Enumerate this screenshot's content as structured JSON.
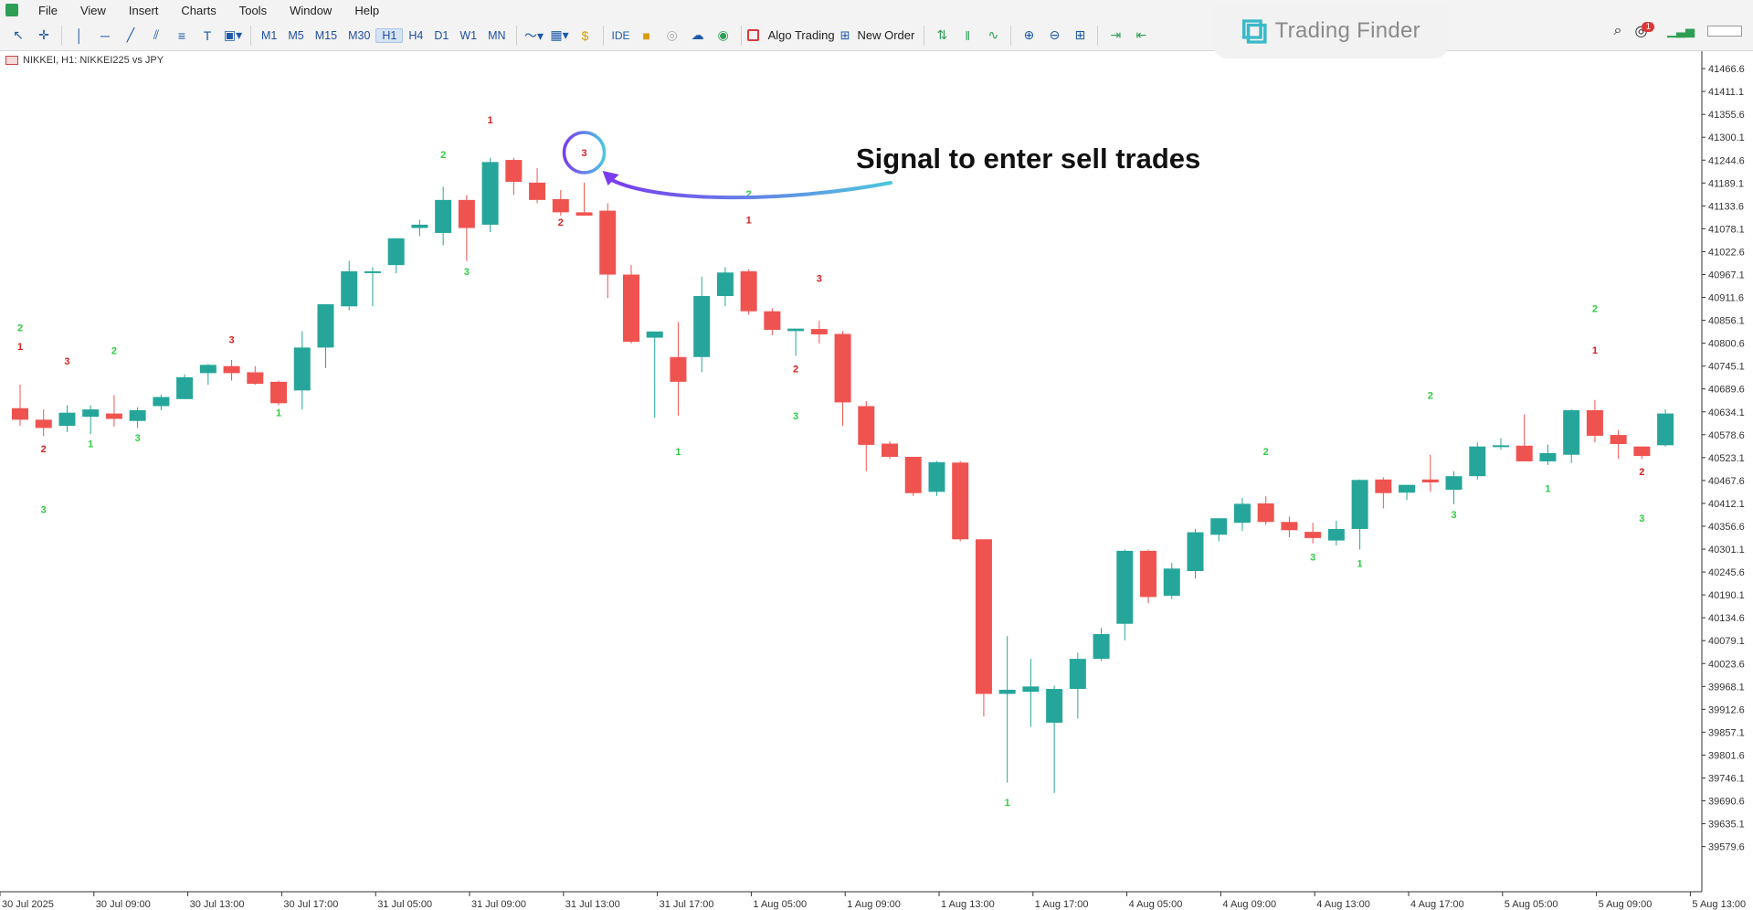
{
  "menu": [
    "File",
    "View",
    "Insert",
    "Charts",
    "Tools",
    "Window",
    "Help"
  ],
  "toolbar": {
    "timeframes": [
      "M1",
      "M5",
      "M15",
      "M30",
      "H1",
      "H4",
      "D1",
      "W1",
      "MN"
    ],
    "active_timeframe": "H1",
    "ide_label": "IDE",
    "algo_label": "Algo Trading",
    "new_order_label": "New Order",
    "notification_count": "1"
  },
  "logo": {
    "name": "Trading Finder"
  },
  "chart": {
    "symbol_label": "NIKKEI, H1:  NIKKEI225 vs JPY",
    "annotation": "Signal to enter sell trades",
    "colors": {
      "bull": "#26a69a",
      "bear": "#ef5350",
      "signal_bull": "#2ecc40",
      "signal_bear": "#d71f1f",
      "arrow_start": "#7a3cf0",
      "arrow_end": "#4dc7de"
    }
  },
  "chart_data": {
    "type": "candlestick",
    "title": "NIKKEI, H1:  NIKKEI225 vs JPY",
    "ylim": [
      39530,
      41500
    ],
    "yticks": [
      "41466.6",
      "41411.1",
      "41355.6",
      "41300.1",
      "41244.6",
      "41189.1",
      "41133.6",
      "41078.1",
      "41022.6",
      "40967.1",
      "40911.6",
      "40856.1",
      "40800.6",
      "40745.1",
      "40689.6",
      "40634.1",
      "40578.6",
      "40523.1",
      "40467.6",
      "40412.1",
      "40356.6",
      "40301.1",
      "40245.6",
      "40190.1",
      "40134.6",
      "40079.1",
      "40023.6",
      "39968.1",
      "39912.6",
      "39857.1",
      "39801.6",
      "39746.1",
      "39690.6",
      "39635.1",
      "39579.6"
    ],
    "xticks": [
      "30 Jul 2025",
      "30 Jul 09:00",
      "30 Jul 13:00",
      "30 Jul 17:00",
      "31 Jul 05:00",
      "31 Jul 09:00",
      "31 Jul 13:00",
      "31 Jul 17:00",
      "1 Aug 05:00",
      "1 Aug 09:00",
      "1 Aug 13:00",
      "1 Aug 17:00",
      "4 Aug 05:00",
      "4 Aug 09:00",
      "4 Aug 13:00",
      "4 Aug 17:00",
      "5 Aug 05:00",
      "5 Aug 09:00",
      "5 Aug 13:00"
    ],
    "candles": [
      {
        "o": 40643,
        "h": 40700,
        "l": 40600,
        "c": 40615
      },
      {
        "o": 40615,
        "h": 40640,
        "l": 40575,
        "c": 40595
      },
      {
        "o": 40600,
        "h": 40650,
        "l": 40585,
        "c": 40632
      },
      {
        "o": 40622,
        "h": 40650,
        "l": 40580,
        "c": 40640
      },
      {
        "o": 40630,
        "h": 40675,
        "l": 40598,
        "c": 40617
      },
      {
        "o": 40612,
        "h": 40645,
        "l": 40595,
        "c": 40638
      },
      {
        "o": 40648,
        "h": 40676,
        "l": 40638,
        "c": 40670
      },
      {
        "o": 40665,
        "h": 40725,
        "l": 40665,
        "c": 40718
      },
      {
        "o": 40728,
        "h": 40750,
        "l": 40700,
        "c": 40748
      },
      {
        "o": 40745,
        "h": 40760,
        "l": 40710,
        "c": 40728
      },
      {
        "o": 40730,
        "h": 40745,
        "l": 40700,
        "c": 40702
      },
      {
        "o": 40707,
        "h": 40710,
        "l": 40650,
        "c": 40655
      },
      {
        "o": 40686,
        "h": 40830,
        "l": 40640,
        "c": 40790
      },
      {
        "o": 40790,
        "h": 40880,
        "l": 40740,
        "c": 40895
      },
      {
        "o": 40890,
        "h": 41000,
        "l": 40880,
        "c": 40975
      },
      {
        "o": 40975,
        "h": 40985,
        "l": 40890,
        "c": 40975
      },
      {
        "o": 40990,
        "h": 41040,
        "l": 40970,
        "c": 41055
      },
      {
        "o": 41080,
        "h": 41100,
        "l": 41060,
        "c": 41088
      },
      {
        "o": 41068,
        "h": 41180,
        "l": 41038,
        "c": 41148
      },
      {
        "o": 41148,
        "h": 41160,
        "l": 41000,
        "c": 41080
      },
      {
        "o": 41088,
        "h": 41250,
        "l": 41070,
        "c": 41240
      },
      {
        "o": 41245,
        "h": 41250,
        "l": 41160,
        "c": 41192
      },
      {
        "o": 41190,
        "h": 41225,
        "l": 41140,
        "c": 41148
      },
      {
        "o": 41150,
        "h": 41172,
        "l": 41110,
        "c": 41118
      },
      {
        "o": 41118,
        "h": 41190,
        "l": 41110,
        "c": 41110
      },
      {
        "o": 41122,
        "h": 41140,
        "l": 40910,
        "c": 40967
      },
      {
        "o": 40967,
        "h": 40990,
        "l": 40800,
        "c": 40804
      },
      {
        "o": 40814,
        "h": 40815,
        "l": 40620,
        "c": 40829
      },
      {
        "o": 40767,
        "h": 40852,
        "l": 40625,
        "c": 40707
      },
      {
        "o": 40767,
        "h": 40962,
        "l": 40730,
        "c": 40915
      },
      {
        "o": 40915,
        "h": 40985,
        "l": 40890,
        "c": 40972
      },
      {
        "o": 40975,
        "h": 40980,
        "l": 40870,
        "c": 40878
      },
      {
        "o": 40878,
        "h": 40885,
        "l": 40820,
        "c": 40833
      },
      {
        "o": 40830,
        "h": 40835,
        "l": 40770,
        "c": 40836
      },
      {
        "o": 40835,
        "h": 40855,
        "l": 40800,
        "c": 40822
      },
      {
        "o": 40823,
        "h": 40830,
        "l": 40600,
        "c": 40657
      },
      {
        "o": 40648,
        "h": 40660,
        "l": 40490,
        "c": 40554
      },
      {
        "o": 40557,
        "h": 40563,
        "l": 40520,
        "c": 40525
      },
      {
        "o": 40525,
        "h": 40525,
        "l": 40430,
        "c": 40437
      },
      {
        "o": 40440,
        "h": 40515,
        "l": 40430,
        "c": 40512
      },
      {
        "o": 40511,
        "h": 40515,
        "l": 40320,
        "c": 40325
      },
      {
        "o": 40325,
        "h": 40325,
        "l": 39895,
        "c": 39950
      },
      {
        "o": 39950,
        "h": 40090,
        "l": 39735,
        "c": 39960
      },
      {
        "o": 39955,
        "h": 40035,
        "l": 39870,
        "c": 39968
      },
      {
        "o": 39880,
        "h": 39970,
        "l": 39710,
        "c": 39962
      },
      {
        "o": 39962,
        "h": 40050,
        "l": 39890,
        "c": 40035
      },
      {
        "o": 40035,
        "h": 40110,
        "l": 40030,
        "c": 40095
      },
      {
        "o": 40120,
        "h": 40300,
        "l": 40080,
        "c": 40297
      },
      {
        "o": 40297,
        "h": 40300,
        "l": 40170,
        "c": 40185
      },
      {
        "o": 40188,
        "h": 40268,
        "l": 40180,
        "c": 40254
      },
      {
        "o": 40248,
        "h": 40350,
        "l": 40230,
        "c": 40342
      },
      {
        "o": 40336,
        "h": 40370,
        "l": 40320,
        "c": 40376
      },
      {
        "o": 40365,
        "h": 40425,
        "l": 40345,
        "c": 40411
      },
      {
        "o": 40412,
        "h": 40430,
        "l": 40360,
        "c": 40367
      },
      {
        "o": 40367,
        "h": 40380,
        "l": 40330,
        "c": 40347
      },
      {
        "o": 40343,
        "h": 40365,
        "l": 40315,
        "c": 40328
      },
      {
        "o": 40322,
        "h": 40370,
        "l": 40310,
        "c": 40350
      },
      {
        "o": 40350,
        "h": 40470,
        "l": 40300,
        "c": 40469
      },
      {
        "o": 40470,
        "h": 40475,
        "l": 40400,
        "c": 40437
      },
      {
        "o": 40438,
        "h": 40455,
        "l": 40420,
        "c": 40457
      },
      {
        "o": 40470,
        "h": 40530,
        "l": 40440,
        "c": 40463
      },
      {
        "o": 40445,
        "h": 40490,
        "l": 40410,
        "c": 40478
      },
      {
        "o": 40478,
        "h": 40560,
        "l": 40470,
        "c": 40550
      },
      {
        "o": 40550,
        "h": 40570,
        "l": 40542,
        "c": 40553
      },
      {
        "o": 40552,
        "h": 40628,
        "l": 40515,
        "c": 40514
      },
      {
        "o": 40514,
        "h": 40555,
        "l": 40505,
        "c": 40534
      },
      {
        "o": 40530,
        "h": 40640,
        "l": 40510,
        "c": 40638
      },
      {
        "o": 40638,
        "h": 40663,
        "l": 40560,
        "c": 40576
      },
      {
        "o": 40578,
        "h": 40590,
        "l": 40520,
        "c": 40556
      },
      {
        "o": 40550,
        "h": 40550,
        "l": 40520,
        "c": 40527
      },
      {
        "o": 40553,
        "h": 40640,
        "l": 40550,
        "c": 40630
      }
    ],
    "signals": [
      {
        "i": 0,
        "label": "2",
        "dir": "bull",
        "v": 40838
      },
      {
        "i": 0,
        "label": "1",
        "dir": "bear",
        "v": 40793
      },
      {
        "i": 1,
        "label": "2",
        "dir": "bear",
        "v": 40545
      },
      {
        "i": 1,
        "label": "3",
        "dir": "bull",
        "v": 40397
      },
      {
        "i": 2,
        "label": "3",
        "dir": "bear",
        "v": 40758
      },
      {
        "i": 3,
        "label": "1",
        "dir": "bull",
        "v": 40557
      },
      {
        "i": 4,
        "label": "2",
        "dir": "bull",
        "v": 40783
      },
      {
        "i": 5,
        "label": "3",
        "dir": "bull",
        "v": 40572
      },
      {
        "i": 9,
        "label": "3",
        "dir": "bear",
        "v": 40810
      },
      {
        "i": 11,
        "label": "1",
        "dir": "bull",
        "v": 40632
      },
      {
        "i": 18,
        "label": "2",
        "dir": "bull",
        "v": 41258
      },
      {
        "i": 19,
        "label": "3",
        "dir": "bull",
        "v": 40975
      },
      {
        "i": 20,
        "label": "1",
        "dir": "bear",
        "v": 41343
      },
      {
        "i": 23,
        "label": "2",
        "dir": "bear",
        "v": 41095
      },
      {
        "i": 24,
        "label": "3",
        "dir": "bear",
        "v": 41263
      },
      {
        "i": 28,
        "label": "1",
        "dir": "bull",
        "v": 40538
      },
      {
        "i": 31,
        "label": "2",
        "dir": "bull",
        "v": 41163
      },
      {
        "i": 31,
        "label": "1",
        "dir": "bear",
        "v": 41100
      },
      {
        "i": 33,
        "label": "2",
        "dir": "bear",
        "v": 40739
      },
      {
        "i": 33,
        "label": "3",
        "dir": "bull",
        "v": 40625
      },
      {
        "i": 34,
        "label": "3",
        "dir": "bear",
        "v": 40958
      },
      {
        "i": 42,
        "label": "1",
        "dir": "bull",
        "v": 39687
      },
      {
        "i": 53,
        "label": "2",
        "dir": "bull",
        "v": 40538
      },
      {
        "i": 55,
        "label": "3",
        "dir": "bull",
        "v": 40282
      },
      {
        "i": 57,
        "label": "1",
        "dir": "bull",
        "v": 40267
      },
      {
        "i": 60,
        "label": "2",
        "dir": "bull",
        "v": 40675
      },
      {
        "i": 61,
        "label": "3",
        "dir": "bull",
        "v": 40385
      },
      {
        "i": 65,
        "label": "1",
        "dir": "bull",
        "v": 40448
      },
      {
        "i": 67,
        "label": "2",
        "dir": "bull",
        "v": 40885
      },
      {
        "i": 67,
        "label": "1",
        "dir": "bear",
        "v": 40784
      },
      {
        "i": 69,
        "label": "2",
        "dir": "bear",
        "v": 40489
      },
      {
        "i": 69,
        "label": "3",
        "dir": "bull",
        "v": 40377
      }
    ],
    "highlighted_signal": {
      "i": 24,
      "label": "3"
    }
  }
}
